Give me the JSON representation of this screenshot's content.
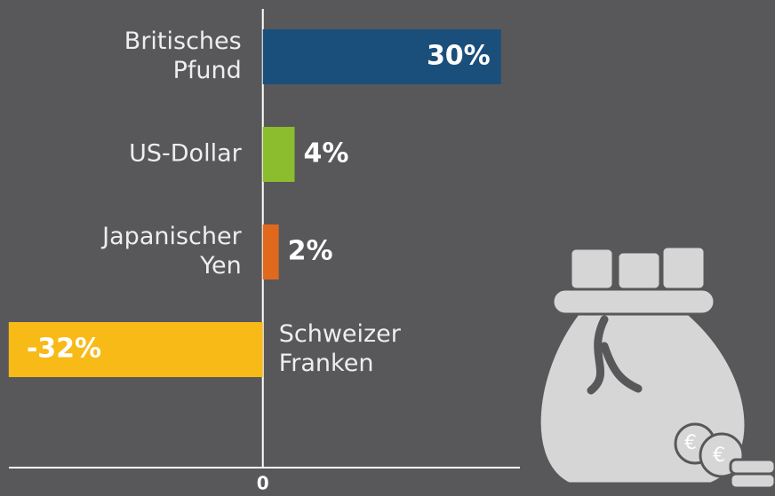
{
  "chart_data": {
    "type": "hbar",
    "categories": [
      [
        "Britisches",
        "Pfund"
      ],
      [
        "US-Dollar"
      ],
      [
        "Japanischer",
        "Yen"
      ],
      [
        "Schweizer",
        "Franken"
      ]
    ],
    "values": [
      30,
      4,
      2,
      -32
    ],
    "value_labels": [
      "30%",
      "4%",
      "2%",
      "-32%"
    ],
    "colors": [
      "#1b4f7b",
      "#8bbd2f",
      "#e0691d",
      "#f8ba17"
    ],
    "xlim": [
      -33.1,
      64.5
    ],
    "xticks": [
      0
    ]
  }
}
